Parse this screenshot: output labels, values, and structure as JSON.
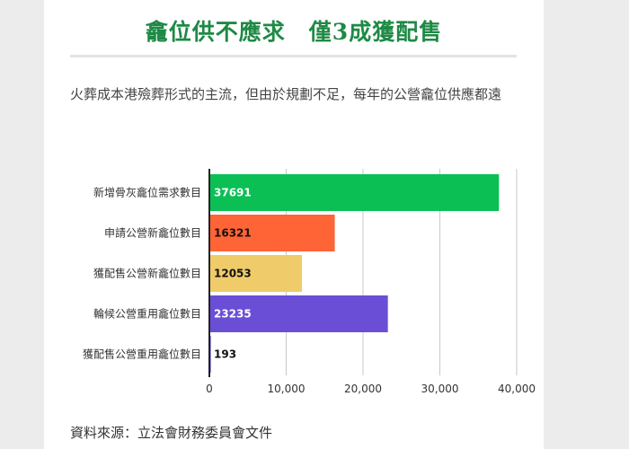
{
  "headline": "龕位供不應求　僅3成獲配售",
  "intro": "火葬成本港殮葬形式的主流，但由於規劃不足，每年的公營龕位供應都遠",
  "source": "資料來源：立法會財務委員會文件",
  "chart_data": {
    "type": "bar",
    "orientation": "horizontal",
    "title": "",
    "xlabel": "",
    "ylabel": "",
    "xlim": [
      0,
      40000
    ],
    "x_ticks": [
      0,
      10000,
      20000,
      30000,
      40000
    ],
    "x_tick_labels": [
      "0",
      "10,000",
      "20,000",
      "30,000",
      "40,000"
    ],
    "grid": "vertical",
    "legend": "none",
    "categories": [
      "新增骨灰龕位需求數目",
      "申請公營新龕位數目",
      "獲配售公營新龕位數目",
      "輪候公營重用龕位數目",
      "獲配售公營重用龕位數目"
    ],
    "values": [
      37691,
      16321,
      12053,
      23235,
      193
    ],
    "value_labels": [
      "37691",
      "16321",
      "12053",
      "23235",
      "193"
    ],
    "colors": [
      "#0bbf55",
      "#ff6436",
      "#f0cb6a",
      "#6a4fd6",
      "#6a4fd6"
    ],
    "label_colors": [
      "#ffffff",
      "#111111",
      "#111111",
      "#ffffff",
      "#111111"
    ]
  }
}
